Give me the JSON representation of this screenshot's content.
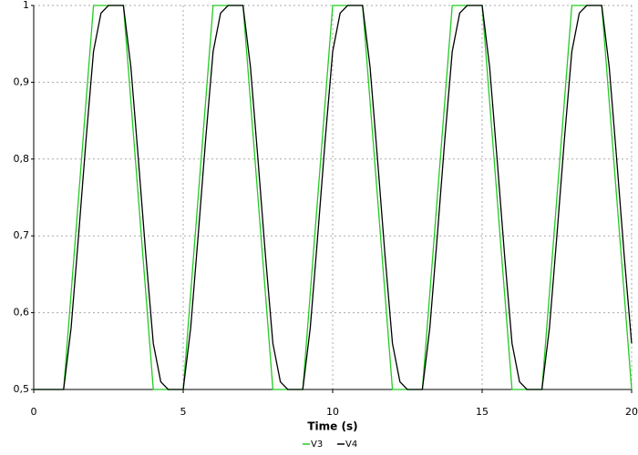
{
  "chart_data": {
    "type": "line",
    "xlabel": "Time (s)",
    "x": [
      0,
      0.25,
      0.5,
      0.75,
      1,
      1.25,
      1.5,
      1.75,
      2,
      2.25,
      2.5,
      2.75,
      3,
      3.25,
      3.5,
      3.75,
      4,
      4.25,
      4.5,
      4.75,
      5,
      5.25,
      5.5,
      5.75,
      6,
      6.25,
      6.5,
      6.75,
      7,
      7.25,
      7.5,
      7.75,
      8,
      8.25,
      8.5,
      8.75,
      9,
      9.25,
      9.5,
      9.75,
      10,
      10.25,
      10.5,
      10.75,
      11,
      11.25,
      11.5,
      11.75,
      12,
      12.25,
      12.5,
      12.75,
      13,
      13.25,
      13.5,
      13.75,
      14,
      14.25,
      14.5,
      14.75,
      15,
      15.25,
      15.5,
      15.75,
      16,
      16.25,
      16.5,
      16.75,
      17,
      17.25,
      17.5,
      17.75,
      18,
      18.25,
      18.5,
      18.75,
      19,
      19.25,
      19.5,
      19.75,
      20
    ],
    "series": [
      {
        "name": "V3",
        "color": "#22cc22",
        "values": [
          0.5,
          0.5,
          0.5,
          0.5,
          0.5,
          0.625,
          0.75,
          0.875,
          1,
          1,
          1,
          1,
          1,
          0.875,
          0.75,
          0.625,
          0.5,
          0.5,
          0.5,
          0.5,
          0.5,
          0.625,
          0.75,
          0.875,
          1,
          1,
          1,
          1,
          1,
          0.875,
          0.75,
          0.625,
          0.5,
          0.5,
          0.5,
          0.5,
          0.5,
          0.625,
          0.75,
          0.875,
          1,
          1,
          1,
          1,
          1,
          0.875,
          0.75,
          0.625,
          0.5,
          0.5,
          0.5,
          0.5,
          0.5,
          0.625,
          0.75,
          0.875,
          1,
          1,
          1,
          1,
          1,
          0.875,
          0.75,
          0.625,
          0.5,
          0.5,
          0.5,
          0.5,
          0.5,
          0.625,
          0.75,
          0.875,
          1,
          1,
          1,
          1,
          1,
          0.875,
          0.75,
          0.625,
          0.5
        ]
      },
      {
        "name": "V4",
        "color": "#000000",
        "values": [
          0.5,
          0.5,
          0.5,
          0.5,
          0.5,
          0.58,
          0.7,
          0.825,
          0.94,
          0.99,
          1,
          1,
          1,
          0.92,
          0.8,
          0.675,
          0.56,
          0.51,
          0.5,
          0.5,
          0.5,
          0.58,
          0.7,
          0.825,
          0.94,
          0.99,
          1,
          1,
          1,
          0.92,
          0.8,
          0.675,
          0.56,
          0.51,
          0.5,
          0.5,
          0.5,
          0.58,
          0.7,
          0.825,
          0.94,
          0.99,
          1,
          1,
          1,
          0.92,
          0.8,
          0.675,
          0.56,
          0.51,
          0.5,
          0.5,
          0.5,
          0.58,
          0.7,
          0.825,
          0.94,
          0.99,
          1,
          1,
          1,
          0.92,
          0.8,
          0.675,
          0.56,
          0.51,
          0.5,
          0.5,
          0.5,
          0.58,
          0.7,
          0.825,
          0.94,
          0.99,
          1,
          1,
          1,
          0.92,
          0.8,
          0.675,
          0.56
        ]
      }
    ],
    "xlim": [
      0,
      20
    ],
    "xticks": [
      0,
      5,
      10,
      15,
      20
    ],
    "ylim": [
      0.5,
      1
    ],
    "yticks": [
      {
        "value": 0.5,
        "label": "0,5"
      },
      {
        "value": 0.6,
        "label": "0,6"
      },
      {
        "value": 0.7,
        "label": "0,7"
      },
      {
        "value": 0.8,
        "label": "0,8"
      },
      {
        "value": 0.9,
        "label": "0,9"
      },
      1
    ],
    "grid": true,
    "legend": "bottom"
  }
}
